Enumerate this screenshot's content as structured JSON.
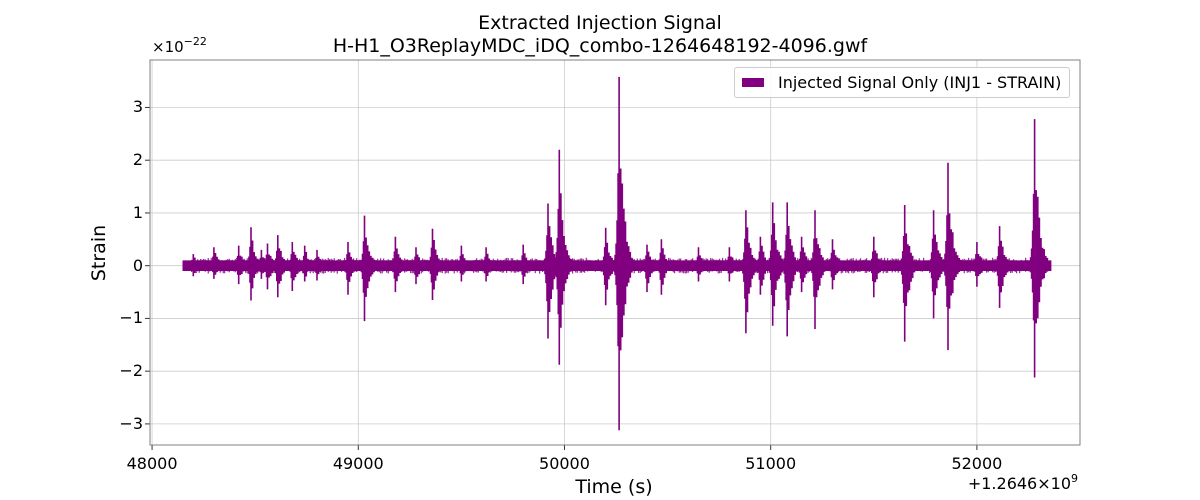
{
  "chart_data": {
    "type": "line",
    "title": "Extracted Injection Signal",
    "subtitle": "H-H1_O3ReplayMDC_iDQ_combo-1264648192-4096.gwf",
    "xlabel": "Time (s)",
    "ylabel": "Strain",
    "x_offset_label": "+1.2646",
    "x_offset_times": "×10",
    "x_offset_exponent": "9",
    "y_scale_prefix": "×10",
    "y_scale_exponent": "−22",
    "xlim": [
      47990,
      52500
    ],
    "ylim": [
      -3.4,
      3.9
    ],
    "xticks": [
      48000,
      49000,
      50000,
      51000,
      52000
    ],
    "xtick_labels": [
      "48000",
      "49000",
      "50000",
      "51000",
      "52000"
    ],
    "yticks": [
      -3,
      -2,
      -1,
      0,
      1,
      2,
      3
    ],
    "ytick_labels": [
      "−3",
      "−2",
      "−1",
      "0",
      "1",
      "2",
      "3"
    ],
    "grid": true,
    "legend_position": "top-right",
    "series": [
      {
        "name": "Injected Signal Only (INJ1 - STRAIN)",
        "color": "#800080",
        "x_start": 48192,
        "x_end": 52288,
        "band_upper": 0.1,
        "band_lower": -0.1,
        "glitches": [
          {
            "t": 48200,
            "max": 0.22,
            "min": -0.2
          },
          {
            "t": 48300,
            "max": 0.35,
            "min": -0.25
          },
          {
            "t": 48420,
            "max": 0.38,
            "min": -0.35
          },
          {
            "t": 48480,
            "max": 0.73,
            "min": -0.66
          },
          {
            "t": 48530,
            "max": 0.3,
            "min": -0.25
          },
          {
            "t": 48560,
            "max": 0.42,
            "min": -0.45
          },
          {
            "t": 48610,
            "max": 0.58,
            "min": -0.6
          },
          {
            "t": 48680,
            "max": 0.45,
            "min": -0.48
          },
          {
            "t": 48740,
            "max": 0.38,
            "min": -0.3
          },
          {
            "t": 48800,
            "max": 0.3,
            "min": -0.28
          },
          {
            "t": 48950,
            "max": 0.45,
            "min": -0.55
          },
          {
            "t": 49030,
            "max": 0.95,
            "min": -1.05
          },
          {
            "t": 49180,
            "max": 0.55,
            "min": -0.5
          },
          {
            "t": 49280,
            "max": 0.35,
            "min": -0.35
          },
          {
            "t": 49360,
            "max": 0.7,
            "min": -0.65
          },
          {
            "t": 49500,
            "max": 0.38,
            "min": -0.3
          },
          {
            "t": 49620,
            "max": 0.35,
            "min": -0.3
          },
          {
            "t": 49800,
            "max": 0.4,
            "min": -0.35
          },
          {
            "t": 49920,
            "max": 1.18,
            "min": -1.38
          },
          {
            "t": 49975,
            "max": 2.2,
            "min": -1.88
          },
          {
            "t": 50200,
            "max": 0.72,
            "min": -0.75
          },
          {
            "t": 50265,
            "max": 3.58,
            "min": -3.12
          },
          {
            "t": 50400,
            "max": 0.4,
            "min": -0.5
          },
          {
            "t": 50470,
            "max": 0.5,
            "min": -0.55
          },
          {
            "t": 50650,
            "max": 0.35,
            "min": -0.3
          },
          {
            "t": 50800,
            "max": 0.35,
            "min": -0.3
          },
          {
            "t": 50880,
            "max": 1.05,
            "min": -1.28
          },
          {
            "t": 50950,
            "max": 0.55,
            "min": -0.55
          },
          {
            "t": 51010,
            "max": 1.2,
            "min": -1.14
          },
          {
            "t": 51080,
            "max": 1.2,
            "min": -1.34
          },
          {
            "t": 51150,
            "max": 0.55,
            "min": -0.5
          },
          {
            "t": 51215,
            "max": 1.05,
            "min": -1.2
          },
          {
            "t": 51300,
            "max": 0.5,
            "min": -0.45
          },
          {
            "t": 51500,
            "max": 0.55,
            "min": -0.6
          },
          {
            "t": 51650,
            "max": 1.15,
            "min": -1.44
          },
          {
            "t": 51790,
            "max": 1.05,
            "min": -1.0
          },
          {
            "t": 51860,
            "max": 1.95,
            "min": -1.6
          },
          {
            "t": 52000,
            "max": 0.45,
            "min": -0.4
          },
          {
            "t": 52110,
            "max": 0.75,
            "min": -0.8
          },
          {
            "t": 52280,
            "max": 2.78,
            "min": -2.12
          }
        ]
      }
    ]
  }
}
